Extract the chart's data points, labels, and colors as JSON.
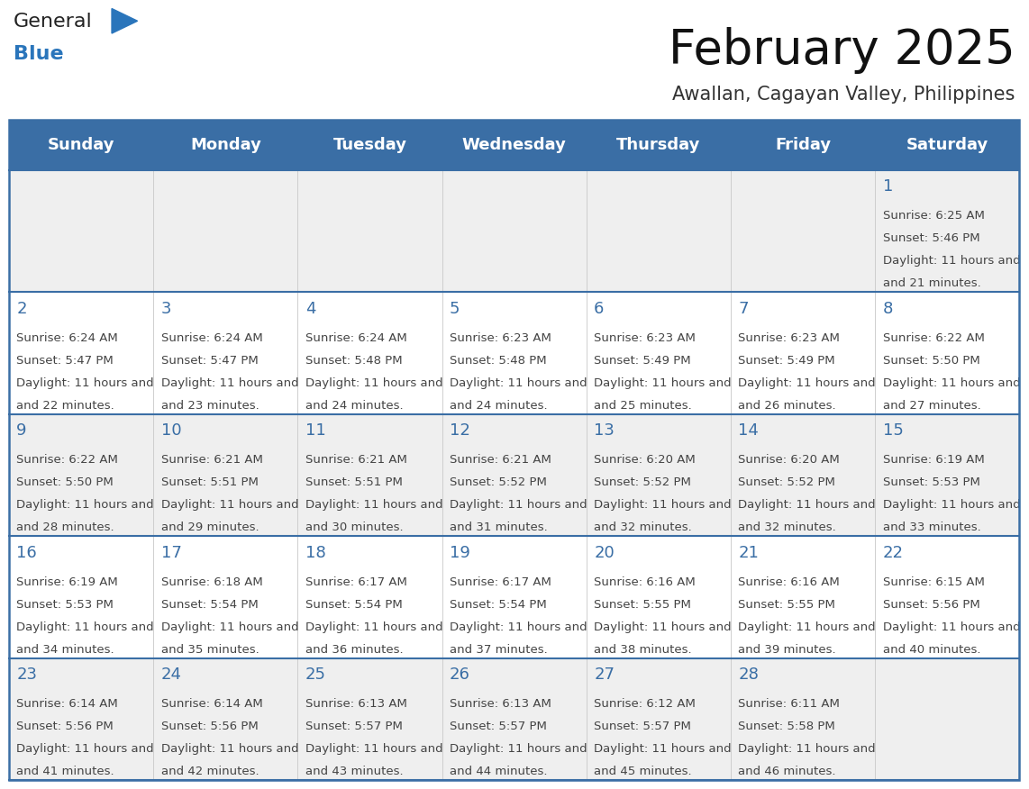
{
  "title": "February 2025",
  "subtitle": "Awallan, Cagayan Valley, Philippines",
  "header_bg": "#3a6ea5",
  "header_text": "#ffffff",
  "header_days": [
    "Sunday",
    "Monday",
    "Tuesday",
    "Wednesday",
    "Thursday",
    "Friday",
    "Saturday"
  ],
  "odd_row_bg": "#efefef",
  "even_row_bg": "#ffffff",
  "border_color": "#3a6ea5",
  "day_number_color": "#3a6ea5",
  "info_text_color": "#444444",
  "logo_general_color": "#222222",
  "logo_blue_color": "#2a75bb",
  "title_color": "#111111",
  "subtitle_color": "#333333",
  "calendar_data": [
    [
      null,
      null,
      null,
      null,
      null,
      null,
      {
        "day": 1,
        "sunrise": "6:25 AM",
        "sunset": "5:46 PM",
        "daylight": "11 hours and 21 minutes."
      }
    ],
    [
      {
        "day": 2,
        "sunrise": "6:24 AM",
        "sunset": "5:47 PM",
        "daylight": "11 hours and 22 minutes."
      },
      {
        "day": 3,
        "sunrise": "6:24 AM",
        "sunset": "5:47 PM",
        "daylight": "11 hours and 23 minutes."
      },
      {
        "day": 4,
        "sunrise": "6:24 AM",
        "sunset": "5:48 PM",
        "daylight": "11 hours and 24 minutes."
      },
      {
        "day": 5,
        "sunrise": "6:23 AM",
        "sunset": "5:48 PM",
        "daylight": "11 hours and 24 minutes."
      },
      {
        "day": 6,
        "sunrise": "6:23 AM",
        "sunset": "5:49 PM",
        "daylight": "11 hours and 25 minutes."
      },
      {
        "day": 7,
        "sunrise": "6:23 AM",
        "sunset": "5:49 PM",
        "daylight": "11 hours and 26 minutes."
      },
      {
        "day": 8,
        "sunrise": "6:22 AM",
        "sunset": "5:50 PM",
        "daylight": "11 hours and 27 minutes."
      }
    ],
    [
      {
        "day": 9,
        "sunrise": "6:22 AM",
        "sunset": "5:50 PM",
        "daylight": "11 hours and 28 minutes."
      },
      {
        "day": 10,
        "sunrise": "6:21 AM",
        "sunset": "5:51 PM",
        "daylight": "11 hours and 29 minutes."
      },
      {
        "day": 11,
        "sunrise": "6:21 AM",
        "sunset": "5:51 PM",
        "daylight": "11 hours and 30 minutes."
      },
      {
        "day": 12,
        "sunrise": "6:21 AM",
        "sunset": "5:52 PM",
        "daylight": "11 hours and 31 minutes."
      },
      {
        "day": 13,
        "sunrise": "6:20 AM",
        "sunset": "5:52 PM",
        "daylight": "11 hours and 32 minutes."
      },
      {
        "day": 14,
        "sunrise": "6:20 AM",
        "sunset": "5:52 PM",
        "daylight": "11 hours and 32 minutes."
      },
      {
        "day": 15,
        "sunrise": "6:19 AM",
        "sunset": "5:53 PM",
        "daylight": "11 hours and 33 minutes."
      }
    ],
    [
      {
        "day": 16,
        "sunrise": "6:19 AM",
        "sunset": "5:53 PM",
        "daylight": "11 hours and 34 minutes."
      },
      {
        "day": 17,
        "sunrise": "6:18 AM",
        "sunset": "5:54 PM",
        "daylight": "11 hours and 35 minutes."
      },
      {
        "day": 18,
        "sunrise": "6:17 AM",
        "sunset": "5:54 PM",
        "daylight": "11 hours and 36 minutes."
      },
      {
        "day": 19,
        "sunrise": "6:17 AM",
        "sunset": "5:54 PM",
        "daylight": "11 hours and 37 minutes."
      },
      {
        "day": 20,
        "sunrise": "6:16 AM",
        "sunset": "5:55 PM",
        "daylight": "11 hours and 38 minutes."
      },
      {
        "day": 21,
        "sunrise": "6:16 AM",
        "sunset": "5:55 PM",
        "daylight": "11 hours and 39 minutes."
      },
      {
        "day": 22,
        "sunrise": "6:15 AM",
        "sunset": "5:56 PM",
        "daylight": "11 hours and 40 minutes."
      }
    ],
    [
      {
        "day": 23,
        "sunrise": "6:14 AM",
        "sunset": "5:56 PM",
        "daylight": "11 hours and 41 minutes."
      },
      {
        "day": 24,
        "sunrise": "6:14 AM",
        "sunset": "5:56 PM",
        "daylight": "11 hours and 42 minutes."
      },
      {
        "day": 25,
        "sunrise": "6:13 AM",
        "sunset": "5:57 PM",
        "daylight": "11 hours and 43 minutes."
      },
      {
        "day": 26,
        "sunrise": "6:13 AM",
        "sunset": "5:57 PM",
        "daylight": "11 hours and 44 minutes."
      },
      {
        "day": 27,
        "sunrise": "6:12 AM",
        "sunset": "5:57 PM",
        "daylight": "11 hours and 45 minutes."
      },
      {
        "day": 28,
        "sunrise": "6:11 AM",
        "sunset": "5:58 PM",
        "daylight": "11 hours and 46 minutes."
      },
      null
    ]
  ]
}
